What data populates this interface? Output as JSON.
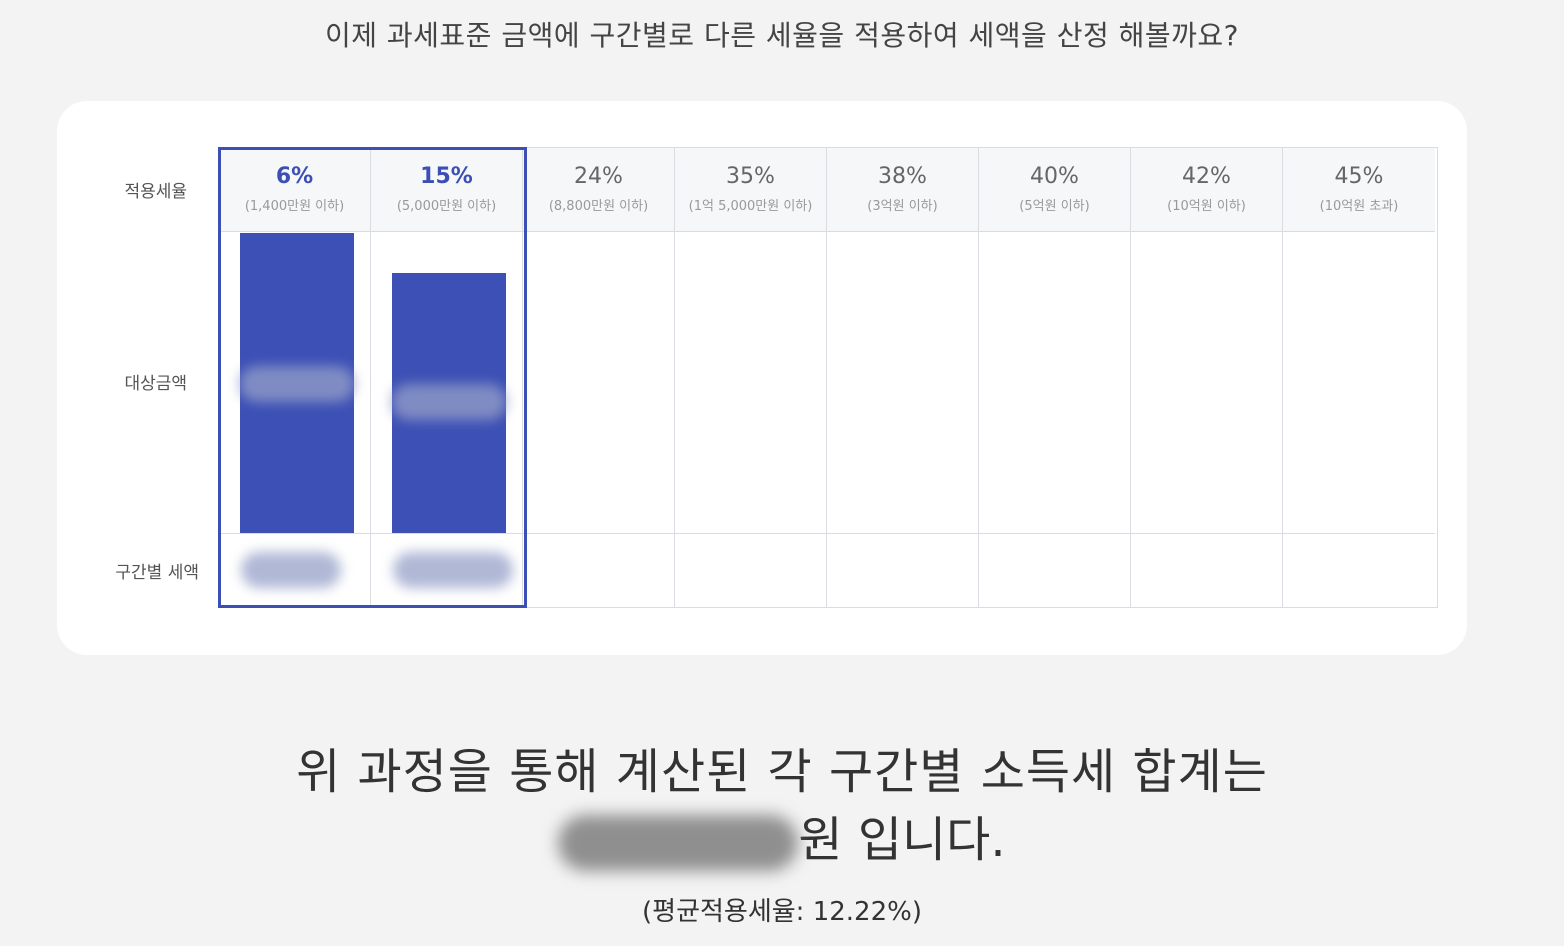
{
  "intro": "이제 과세표준 금액에 구간별로 다른 세율을 적용하여 세액을 산정 해볼까요?",
  "row_labels": {
    "rate": "적용세율",
    "amount": "대상금액",
    "tax": "구간별 세액"
  },
  "brackets": [
    {
      "rate": "6%",
      "limit": "(1,400만원 이하)",
      "active": true,
      "bar_fill": 1.0
    },
    {
      "rate": "15%",
      "limit": "(5,000만원 이하)",
      "active": true,
      "bar_fill": 0.865
    },
    {
      "rate": "24%",
      "limit": "(8,800만원 이하)",
      "active": false,
      "bar_fill": 0
    },
    {
      "rate": "35%",
      "limit": "(1억 5,000만원 이하)",
      "active": false,
      "bar_fill": 0
    },
    {
      "rate": "38%",
      "limit": "(3억원 이하)",
      "active": false,
      "bar_fill": 0
    },
    {
      "rate": "40%",
      "limit": "(5억원 이하)",
      "active": false,
      "bar_fill": 0
    },
    {
      "rate": "42%",
      "limit": "(10억원 이하)",
      "active": false,
      "bar_fill": 0
    },
    {
      "rate": "45%",
      "limit": "(10억원 초과)",
      "active": false,
      "bar_fill": 0
    }
  ],
  "summary": {
    "line1": "위 과정을 통해 계산된 각 구간별 소득세 합계는",
    "line2_suffix": "원 입니다.",
    "avg": "(평균적용세율: 12.22%)"
  },
  "colors": {
    "accent": "#3b4fb4",
    "bar": "#3d50b5"
  }
}
